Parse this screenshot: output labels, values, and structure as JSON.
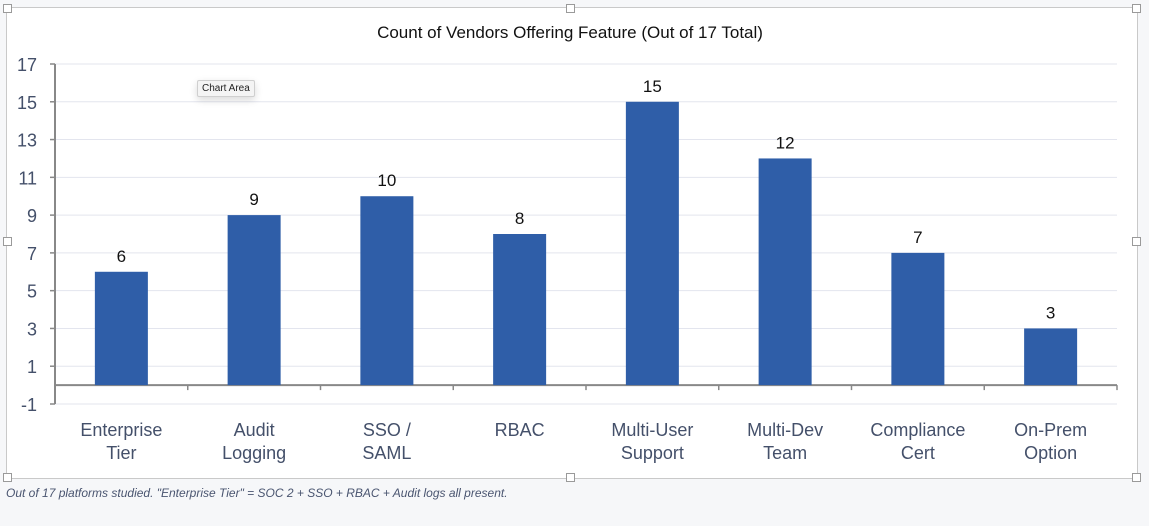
{
  "chart_data": {
    "type": "bar",
    "title": "Count of Vendors Offering Feature (Out of 17 Total)",
    "categories": [
      [
        "Enterprise",
        "Tier"
      ],
      [
        "Audit",
        "Logging"
      ],
      [
        "SSO /",
        "SAML"
      ],
      [
        "RBAC"
      ],
      [
        "Multi-User",
        "Support"
      ],
      [
        "Multi-Dev",
        "Team"
      ],
      [
        "Compliance",
        "Cert"
      ],
      [
        "On-Prem",
        "Option"
      ]
    ],
    "values": [
      6,
      9,
      10,
      8,
      15,
      12,
      7,
      3
    ],
    "xlabel": "",
    "ylabel": "",
    "ylim": [
      -1,
      17
    ],
    "yticks": [
      -1,
      1,
      3,
      5,
      7,
      9,
      11,
      13,
      15,
      17
    ],
    "grid": true,
    "data_labels": true,
    "bar_color": "#2f5ea8"
  },
  "tooltip": "Chart Area",
  "caption": "Out of 17 platforms studied. \"Enterprise Tier\" = SOC 2 + SSO + RBAC + Audit logs all present."
}
